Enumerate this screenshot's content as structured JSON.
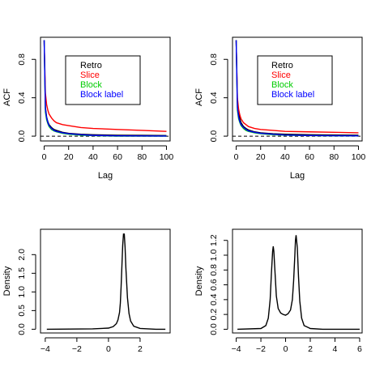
{
  "chart_data": [
    {
      "type": "line",
      "xlabel": "Lag",
      "ylabel": "ACF",
      "xlim": [
        -3,
        103
      ],
      "ylim": [
        -0.05,
        1.03
      ],
      "xticks": [
        0,
        20,
        40,
        60,
        80,
        100
      ],
      "yticks": [
        0.0,
        0.4,
        0.8
      ],
      "ytick_labels": [
        "0.0",
        "0.4",
        "0.8"
      ],
      "hline_dashed": 0.0,
      "legend": {
        "placement": "top-right"
      },
      "series": [
        {
          "name": "Retro",
          "color": "#000000",
          "x": [
            0,
            1,
            2,
            3,
            4,
            6,
            8,
            10,
            15,
            20,
            30,
            40,
            60,
            80,
            100
          ],
          "y": [
            1.0,
            0.3,
            0.2,
            0.15,
            0.12,
            0.09,
            0.07,
            0.06,
            0.04,
            0.03,
            0.02,
            0.015,
            0.01,
            0.008,
            0.006
          ]
        },
        {
          "name": "Slice",
          "color": "#ff0000",
          "x": [
            0,
            1,
            2,
            3,
            4,
            6,
            8,
            10,
            15,
            20,
            30,
            40,
            60,
            80,
            100
          ],
          "y": [
            1.0,
            0.45,
            0.33,
            0.27,
            0.23,
            0.19,
            0.16,
            0.14,
            0.12,
            0.11,
            0.09,
            0.08,
            0.07,
            0.06,
            0.05
          ]
        },
        {
          "name": "Block",
          "color": "#00cc00",
          "x": [
            0,
            1,
            2,
            3,
            4,
            6,
            8,
            10,
            15,
            20,
            30,
            40,
            60,
            80,
            100
          ],
          "y": [
            1.0,
            0.25,
            0.17,
            0.13,
            0.1,
            0.07,
            0.055,
            0.045,
            0.03,
            0.02,
            0.01,
            0.005,
            0.0,
            0.0,
            0.0
          ]
        },
        {
          "name": "Block label",
          "color": "#0000ff",
          "x": [
            0,
            1,
            2,
            3,
            4,
            6,
            8,
            10,
            15,
            20,
            30,
            40,
            60,
            80,
            100
          ],
          "y": [
            1.0,
            0.28,
            0.19,
            0.14,
            0.11,
            0.08,
            0.06,
            0.05,
            0.035,
            0.025,
            0.015,
            0.008,
            0.003,
            0.002,
            0.001
          ]
        }
      ]
    },
    {
      "type": "line",
      "xlabel": "Lag",
      "ylabel": "ACF",
      "xlim": [
        -3,
        103
      ],
      "ylim": [
        -0.05,
        1.03
      ],
      "xticks": [
        0,
        20,
        40,
        60,
        80,
        100
      ],
      "yticks": [
        0.0,
        0.4,
        0.8
      ],
      "ytick_labels": [
        "0.0",
        "0.4",
        "0.8"
      ],
      "hline_dashed": 0.0,
      "legend": {
        "placement": "top-right"
      },
      "series": [
        {
          "name": "Retro",
          "color": "#000000",
          "x": [
            0,
            1,
            2,
            3,
            4,
            6,
            8,
            10,
            15,
            20,
            30,
            40,
            60,
            80,
            100
          ],
          "y": [
            1.0,
            0.35,
            0.24,
            0.18,
            0.14,
            0.1,
            0.08,
            0.065,
            0.045,
            0.035,
            0.025,
            0.02,
            0.015,
            0.012,
            0.01
          ]
        },
        {
          "name": "Slice",
          "color": "#ff0000",
          "x": [
            0,
            1,
            2,
            3,
            4,
            6,
            8,
            10,
            15,
            20,
            30,
            40,
            60,
            80,
            100
          ],
          "y": [
            1.0,
            0.4,
            0.28,
            0.22,
            0.18,
            0.14,
            0.12,
            0.1,
            0.08,
            0.07,
            0.06,
            0.05,
            0.045,
            0.04,
            0.035
          ]
        },
        {
          "name": "Block",
          "color": "#00cc00",
          "x": [
            0,
            1,
            2,
            3,
            4,
            6,
            8,
            10,
            15,
            20,
            30,
            40,
            60,
            80,
            100
          ],
          "y": [
            1.0,
            0.27,
            0.18,
            0.14,
            0.11,
            0.08,
            0.06,
            0.05,
            0.035,
            0.025,
            0.015,
            0.01,
            0.005,
            0.003,
            0.002
          ]
        },
        {
          "name": "Block label",
          "color": "#0000ff",
          "x": [
            0,
            1,
            2,
            3,
            4,
            6,
            8,
            10,
            15,
            20,
            30,
            40,
            60,
            80,
            100
          ],
          "y": [
            1.0,
            0.3,
            0.2,
            0.15,
            0.12,
            0.09,
            0.07,
            0.055,
            0.04,
            0.03,
            0.02,
            0.012,
            0.006,
            0.004,
            0.003
          ]
        }
      ]
    },
    {
      "type": "line",
      "xlabel": "",
      "ylabel": "Density",
      "xlim": [
        -4.3,
        3.9
      ],
      "ylim": [
        -0.1,
        2.68
      ],
      "xticks": [
        -4,
        -2,
        0,
        2
      ],
      "yticks": [
        0.0,
        0.5,
        1.0,
        1.5,
        2.0
      ],
      "ytick_labels": [
        "0.0",
        "0.5",
        "1.0",
        "1.5",
        "2.0"
      ],
      "series": [
        {
          "color": "#000000",
          "x": [
            -3.9,
            -1.0,
            0.0,
            0.3,
            0.5,
            0.6,
            0.7,
            0.75,
            0.8,
            0.85,
            0.9,
            0.95,
            1.0,
            1.05,
            1.1,
            1.2,
            1.3,
            1.4,
            1.6,
            2.0,
            3.0,
            3.6
          ],
          "y": [
            0.0,
            0.01,
            0.03,
            0.07,
            0.15,
            0.25,
            0.45,
            0.7,
            1.15,
            1.7,
            2.25,
            2.55,
            2.55,
            2.2,
            1.65,
            0.85,
            0.42,
            0.22,
            0.08,
            0.02,
            0.0,
            0.0
          ]
        }
      ]
    },
    {
      "type": "line",
      "xlabel": "",
      "ylabel": "Density",
      "xlim": [
        -4.3,
        6.2
      ],
      "ylim": [
        -0.05,
        1.35
      ],
      "xticks": [
        -4,
        -2,
        0,
        2,
        4,
        6
      ],
      "yticks": [
        0.0,
        0.2,
        0.4,
        0.6,
        0.8,
        1.0,
        1.2
      ],
      "ytick_labels": [
        "0.0",
        "0.2",
        "0.4",
        "0.6",
        "0.8",
        "1.0",
        "1.2"
      ],
      "series": [
        {
          "color": "#000000",
          "x": [
            -3.9,
            -2.0,
            -1.6,
            -1.4,
            -1.25,
            -1.15,
            -1.05,
            -1.0,
            -0.95,
            -0.85,
            -0.75,
            -0.6,
            -0.4,
            -0.2,
            0.0,
            0.2,
            0.4,
            0.55,
            0.65,
            0.75,
            0.8,
            0.85,
            0.95,
            1.05,
            1.15,
            1.3,
            1.5,
            2.0,
            3.0,
            6.0
          ],
          "y": [
            0.0,
            0.01,
            0.05,
            0.15,
            0.4,
            0.75,
            1.05,
            1.12,
            1.05,
            0.75,
            0.45,
            0.28,
            0.22,
            0.2,
            0.19,
            0.21,
            0.26,
            0.4,
            0.65,
            1.0,
            1.2,
            1.27,
            1.1,
            0.7,
            0.38,
            0.15,
            0.05,
            0.01,
            0.0,
            0.0
          ]
        }
      ]
    }
  ]
}
